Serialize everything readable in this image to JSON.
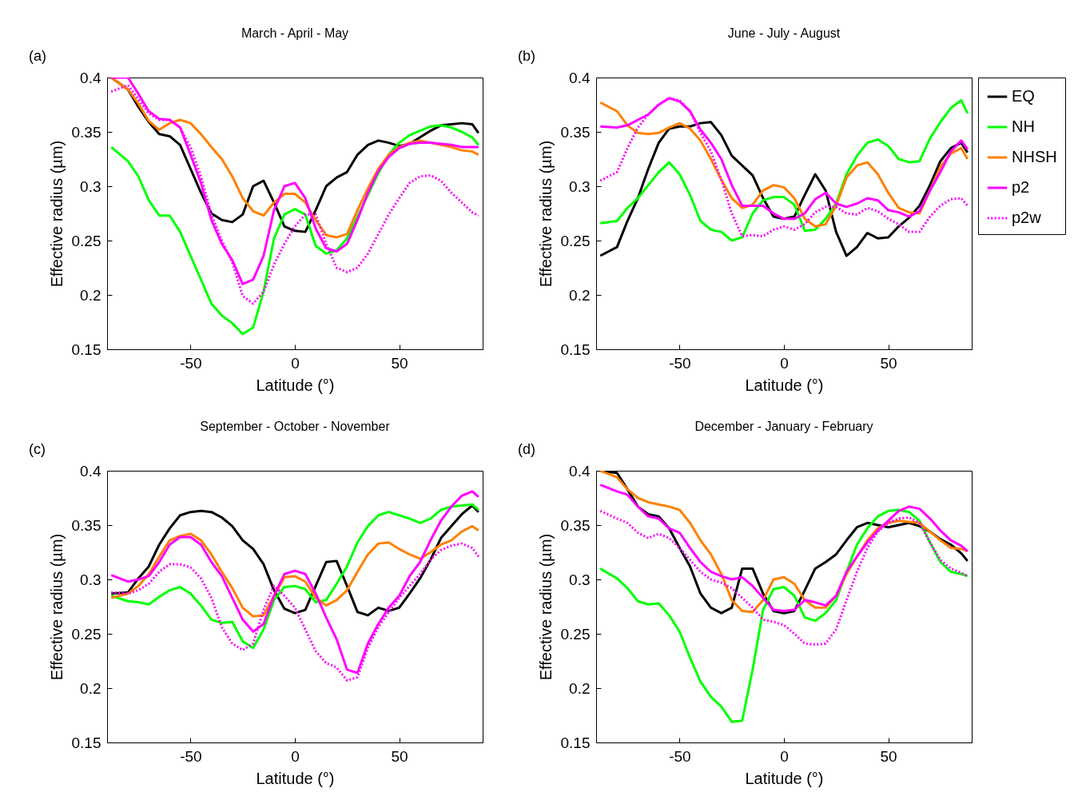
{
  "chart_data": [
    {
      "type": "line",
      "title": "March - April - May",
      "annotations": [
        "(a)"
      ],
      "xlabel": "Latitude (°)",
      "ylabel": "Effective radius (µm)",
      "xlim": [
        -90,
        90
      ],
      "ylim": [
        0.15,
        0.4
      ],
      "xticks": [
        -50,
        0,
        50
      ],
      "yticks": [
        0.15,
        0.2,
        0.25,
        0.3,
        0.35,
        0.4
      ],
      "grid": false,
      "x": [
        -88,
        -80,
        -75,
        -70,
        -65,
        -60,
        -55,
        -50,
        -45,
        -40,
        -35,
        -30,
        -25,
        -20,
        -15,
        -10,
        -5,
        0,
        5,
        10,
        15,
        20,
        25,
        30,
        35,
        40,
        45,
        50,
        55,
        60,
        65,
        70,
        75,
        80,
        85,
        88
      ],
      "series": [
        {
          "color": "#000000",
          "line_style": "solid",
          "values": [
            0.4,
            0.389,
            0.373,
            0.359,
            0.348,
            0.346,
            0.338,
            0.316,
            0.294,
            0.275,
            0.269,
            0.267,
            0.274,
            0.3,
            0.305,
            0.285,
            0.263,
            0.259,
            0.258,
            0.278,
            0.3,
            0.308,
            0.313,
            0.329,
            0.338,
            0.342,
            0.34,
            0.337,
            0.339,
            0.345,
            0.351,
            0.356,
            0.357,
            0.358,
            0.357,
            0.349
          ]
        },
        {
          "color": "#00ff00",
          "line_style": "solid",
          "values": [
            0.336,
            0.323,
            0.309,
            0.287,
            0.273,
            0.273,
            0.258,
            0.236,
            0.214,
            0.192,
            0.181,
            0.174,
            0.164,
            0.17,
            0.203,
            0.252,
            0.274,
            0.279,
            0.274,
            0.245,
            0.238,
            0.241,
            0.252,
            0.272,
            0.292,
            0.312,
            0.329,
            0.34,
            0.347,
            0.351,
            0.355,
            0.356,
            0.354,
            0.35,
            0.345,
            0.338
          ]
        },
        {
          "color": "#ff8000",
          "line_style": "solid",
          "values": [
            0.4,
            0.389,
            0.376,
            0.36,
            0.352,
            0.358,
            0.361,
            0.358,
            0.348,
            0.336,
            0.325,
            0.309,
            0.289,
            0.277,
            0.273,
            0.285,
            0.293,
            0.293,
            0.285,
            0.269,
            0.255,
            0.253,
            0.256,
            0.278,
            0.298,
            0.316,
            0.329,
            0.336,
            0.34,
            0.342,
            0.34,
            0.338,
            0.336,
            0.333,
            0.332,
            0.329
          ]
        },
        {
          "color": "#ff00ff",
          "line_style": "solid",
          "values": [
            0.4,
            0.4,
            0.385,
            0.369,
            0.362,
            0.361,
            0.354,
            0.329,
            0.303,
            0.269,
            0.247,
            0.232,
            0.21,
            0.214,
            0.236,
            0.278,
            0.3,
            0.303,
            0.289,
            0.261,
            0.243,
            0.24,
            0.247,
            0.269,
            0.294,
            0.314,
            0.327,
            0.335,
            0.339,
            0.34,
            0.34,
            0.339,
            0.338,
            0.336,
            0.336,
            0.336
          ]
        },
        {
          "color": "#ff00ff",
          "line_style": "dotted",
          "values": [
            0.387,
            0.393,
            0.38,
            0.367,
            0.361,
            0.361,
            0.354,
            0.336,
            0.309,
            0.274,
            0.25,
            0.23,
            0.199,
            0.192,
            0.203,
            0.228,
            0.247,
            0.263,
            0.274,
            0.274,
            0.247,
            0.225,
            0.221,
            0.225,
            0.238,
            0.256,
            0.274,
            0.289,
            0.303,
            0.309,
            0.31,
            0.305,
            0.294,
            0.285,
            0.276,
            0.273
          ]
        }
      ]
    },
    {
      "type": "line",
      "title": "June - July - August",
      "annotations": [
        "(b)"
      ],
      "xlabel": "Latitude (°)",
      "ylabel": "Effective radius (µm)",
      "xlim": [
        -90,
        90
      ],
      "ylim": [
        0.15,
        0.4
      ],
      "xticks": [
        -50,
        0,
        50
      ],
      "yticks": [
        0.15,
        0.2,
        0.25,
        0.3,
        0.35,
        0.4
      ],
      "grid": false,
      "legend": "right",
      "x": [
        -88,
        -80,
        -75,
        -70,
        -65,
        -60,
        -55,
        -50,
        -45,
        -40,
        -35,
        -30,
        -25,
        -20,
        -15,
        -10,
        -5,
        0,
        5,
        10,
        15,
        20,
        25,
        30,
        35,
        40,
        45,
        50,
        55,
        60,
        65,
        70,
        75,
        80,
        85,
        88
      ],
      "series": [
        {
          "name": "EQ",
          "color": "#000000",
          "line_style": "solid",
          "values": [
            0.236,
            0.244,
            0.268,
            0.289,
            0.316,
            0.34,
            0.353,
            0.355,
            0.355,
            0.358,
            0.359,
            0.347,
            0.328,
            0.319,
            0.31,
            0.289,
            0.272,
            0.27,
            0.272,
            0.292,
            0.311,
            0.296,
            0.258,
            0.236,
            0.244,
            0.257,
            0.252,
            0.253,
            0.263,
            0.271,
            0.282,
            0.301,
            0.323,
            0.335,
            0.34,
            0.331
          ]
        },
        {
          "name": "NH",
          "color": "#00ff00",
          "line_style": "solid",
          "values": [
            0.266,
            0.268,
            0.28,
            0.289,
            0.301,
            0.313,
            0.322,
            0.311,
            0.292,
            0.268,
            0.26,
            0.258,
            0.25,
            0.253,
            0.275,
            0.287,
            0.29,
            0.29,
            0.283,
            0.259,
            0.26,
            0.27,
            0.284,
            0.311,
            0.328,
            0.34,
            0.343,
            0.337,
            0.325,
            0.322,
            0.323,
            0.344,
            0.359,
            0.372,
            0.379,
            0.367
          ]
        },
        {
          "name": "NHSH",
          "color": "#ff8000",
          "line_style": "solid",
          "values": [
            0.377,
            0.369,
            0.356,
            0.349,
            0.348,
            0.349,
            0.354,
            0.358,
            0.353,
            0.342,
            0.325,
            0.306,
            0.289,
            0.28,
            0.283,
            0.296,
            0.301,
            0.299,
            0.289,
            0.27,
            0.263,
            0.265,
            0.282,
            0.308,
            0.319,
            0.322,
            0.311,
            0.294,
            0.28,
            0.276,
            0.275,
            0.296,
            0.318,
            0.33,
            0.335,
            0.325
          ]
        },
        {
          "name": "p2",
          "color": "#ff00ff",
          "line_style": "solid",
          "values": [
            0.355,
            0.354,
            0.356,
            0.361,
            0.366,
            0.375,
            0.381,
            0.378,
            0.369,
            0.352,
            0.34,
            0.325,
            0.301,
            0.282,
            0.282,
            0.282,
            0.275,
            0.27,
            0.27,
            0.275,
            0.288,
            0.294,
            0.284,
            0.281,
            0.284,
            0.289,
            0.287,
            0.278,
            0.276,
            0.272,
            0.277,
            0.296,
            0.313,
            0.332,
            0.342,
            0.334
          ]
        },
        {
          "name": "p2w",
          "color": "#ff00ff",
          "line_style": "dotted",
          "values": [
            0.305,
            0.313,
            0.335,
            0.354,
            0.366,
            0.375,
            0.381,
            0.379,
            0.369,
            0.349,
            0.332,
            0.306,
            0.275,
            0.254,
            0.255,
            0.254,
            0.26,
            0.263,
            0.26,
            0.265,
            0.276,
            0.281,
            0.281,
            0.275,
            0.274,
            0.28,
            0.277,
            0.27,
            0.265,
            0.258,
            0.258,
            0.272,
            0.282,
            0.288,
            0.289,
            0.282
          ]
        }
      ]
    },
    {
      "type": "line",
      "title": "September - October - November",
      "annotations": [
        "(c)"
      ],
      "xlabel": "Latitude (°)",
      "ylabel": "Effective radius (µm)",
      "xlim": [
        -90,
        90
      ],
      "ylim": [
        0.15,
        0.4
      ],
      "xticks": [
        -50,
        0,
        50
      ],
      "yticks": [
        0.15,
        0.2,
        0.25,
        0.3,
        0.35,
        0.4
      ],
      "grid": false,
      "x": [
        -88,
        -80,
        -75,
        -70,
        -65,
        -60,
        -55,
        -50,
        -45,
        -40,
        -35,
        -30,
        -25,
        -20,
        -15,
        -10,
        -5,
        0,
        5,
        10,
        15,
        20,
        25,
        30,
        35,
        40,
        45,
        50,
        55,
        60,
        65,
        70,
        75,
        80,
        85,
        88
      ],
      "series": [
        {
          "color": "#000000",
          "line_style": "solid",
          "values": [
            0.287,
            0.288,
            0.301,
            0.312,
            0.332,
            0.347,
            0.359,
            0.362,
            0.363,
            0.362,
            0.357,
            0.349,
            0.336,
            0.328,
            0.314,
            0.29,
            0.273,
            0.269,
            0.272,
            0.294,
            0.316,
            0.317,
            0.294,
            0.27,
            0.267,
            0.274,
            0.271,
            0.274,
            0.287,
            0.301,
            0.318,
            0.338,
            0.349,
            0.36,
            0.368,
            0.362
          ]
        },
        {
          "color": "#00ff00",
          "line_style": "solid",
          "values": [
            0.285,
            0.28,
            0.279,
            0.277,
            0.284,
            0.29,
            0.293,
            0.287,
            0.276,
            0.263,
            0.26,
            0.261,
            0.243,
            0.237,
            0.254,
            0.281,
            0.293,
            0.294,
            0.291,
            0.279,
            0.281,
            0.296,
            0.312,
            0.334,
            0.349,
            0.359,
            0.362,
            0.359,
            0.356,
            0.352,
            0.356,
            0.364,
            0.367,
            0.368,
            0.369,
            0.364
          ]
        },
        {
          "color": "#ff8000",
          "line_style": "solid",
          "values": [
            0.283,
            0.287,
            0.294,
            0.305,
            0.321,
            0.336,
            0.34,
            0.342,
            0.336,
            0.323,
            0.307,
            0.292,
            0.274,
            0.266,
            0.267,
            0.285,
            0.302,
            0.303,
            0.298,
            0.283,
            0.276,
            0.281,
            0.29,
            0.307,
            0.323,
            0.333,
            0.334,
            0.328,
            0.323,
            0.319,
            0.325,
            0.332,
            0.336,
            0.344,
            0.349,
            0.345
          ]
        },
        {
          "color": "#ff00ff",
          "line_style": "solid",
          "values": [
            0.304,
            0.298,
            0.3,
            0.303,
            0.316,
            0.332,
            0.339,
            0.339,
            0.332,
            0.316,
            0.303,
            0.283,
            0.263,
            0.252,
            0.259,
            0.285,
            0.305,
            0.308,
            0.305,
            0.287,
            0.265,
            0.245,
            0.217,
            0.214,
            0.241,
            0.259,
            0.274,
            0.285,
            0.303,
            0.316,
            0.336,
            0.354,
            0.367,
            0.377,
            0.381,
            0.376
          ]
        },
        {
          "color": "#ff00ff",
          "line_style": "dotted",
          "values": [
            0.288,
            0.287,
            0.29,
            0.296,
            0.307,
            0.314,
            0.314,
            0.311,
            0.301,
            0.283,
            0.256,
            0.241,
            0.235,
            0.241,
            0.272,
            0.294,
            0.285,
            0.274,
            0.254,
            0.234,
            0.223,
            0.219,
            0.207,
            0.21,
            0.237,
            0.256,
            0.27,
            0.283,
            0.294,
            0.305,
            0.318,
            0.327,
            0.331,
            0.333,
            0.329,
            0.321
          ]
        }
      ]
    },
    {
      "type": "line",
      "title": "December - January - February",
      "annotations": [
        "(d)"
      ],
      "xlabel": "Latitude (°)",
      "ylabel": "Effective radius (µm)",
      "xlim": [
        -90,
        90
      ],
      "ylim": [
        0.15,
        0.4
      ],
      "xticks": [
        -50,
        0,
        50
      ],
      "yticks": [
        0.15,
        0.2,
        0.25,
        0.3,
        0.35,
        0.4
      ],
      "grid": false,
      "x": [
        -88,
        -80,
        -75,
        -70,
        -65,
        -60,
        -55,
        -50,
        -45,
        -40,
        -35,
        -30,
        -25,
        -20,
        -15,
        -10,
        -5,
        0,
        5,
        10,
        15,
        20,
        25,
        30,
        35,
        40,
        45,
        50,
        55,
        60,
        65,
        70,
        75,
        80,
        85,
        88
      ],
      "series": [
        {
          "color": "#000000",
          "line_style": "solid",
          "values": [
            0.4,
            0.398,
            0.383,
            0.367,
            0.36,
            0.358,
            0.347,
            0.329,
            0.312,
            0.287,
            0.274,
            0.269,
            0.274,
            0.31,
            0.31,
            0.287,
            0.271,
            0.269,
            0.271,
            0.29,
            0.31,
            0.316,
            0.323,
            0.336,
            0.348,
            0.352,
            0.35,
            0.348,
            0.35,
            0.352,
            0.349,
            0.344,
            0.337,
            0.332,
            0.324,
            0.317
          ]
        },
        {
          "color": "#00ff00",
          "line_style": "solid",
          "values": [
            0.31,
            0.301,
            0.292,
            0.28,
            0.277,
            0.278,
            0.267,
            0.252,
            0.228,
            0.206,
            0.192,
            0.183,
            0.169,
            0.17,
            0.217,
            0.272,
            0.291,
            0.293,
            0.285,
            0.265,
            0.262,
            0.269,
            0.281,
            0.307,
            0.332,
            0.347,
            0.358,
            0.363,
            0.364,
            0.362,
            0.354,
            0.334,
            0.316,
            0.307,
            0.305,
            0.303
          ]
        },
        {
          "color": "#ff8000",
          "line_style": "solid",
          "values": [
            0.4,
            0.394,
            0.383,
            0.375,
            0.371,
            0.369,
            0.367,
            0.364,
            0.352,
            0.336,
            0.323,
            0.305,
            0.281,
            0.271,
            0.27,
            0.281,
            0.3,
            0.302,
            0.296,
            0.281,
            0.274,
            0.274,
            0.285,
            0.305,
            0.321,
            0.336,
            0.347,
            0.352,
            0.354,
            0.353,
            0.352,
            0.344,
            0.336,
            0.329,
            0.328,
            0.326
          ]
        },
        {
          "color": "#ff00ff",
          "line_style": "solid",
          "values": [
            0.387,
            0.381,
            0.378,
            0.367,
            0.358,
            0.356,
            0.347,
            0.343,
            0.329,
            0.316,
            0.307,
            0.303,
            0.3,
            0.302,
            0.294,
            0.283,
            0.272,
            0.271,
            0.272,
            0.281,
            0.279,
            0.276,
            0.285,
            0.307,
            0.321,
            0.334,
            0.345,
            0.354,
            0.363,
            0.367,
            0.365,
            0.356,
            0.345,
            0.336,
            0.331,
            0.326
          ]
        },
        {
          "color": "#ff00ff",
          "line_style": "dotted",
          "values": [
            0.363,
            0.356,
            0.352,
            0.343,
            0.338,
            0.342,
            0.338,
            0.329,
            0.318,
            0.307,
            0.3,
            0.297,
            0.292,
            0.283,
            0.274,
            0.263,
            0.261,
            0.258,
            0.25,
            0.241,
            0.24,
            0.241,
            0.254,
            0.281,
            0.307,
            0.329,
            0.344,
            0.352,
            0.356,
            0.357,
            0.352,
            0.334,
            0.318,
            0.31,
            0.306,
            0.303
          ]
        }
      ]
    }
  ]
}
